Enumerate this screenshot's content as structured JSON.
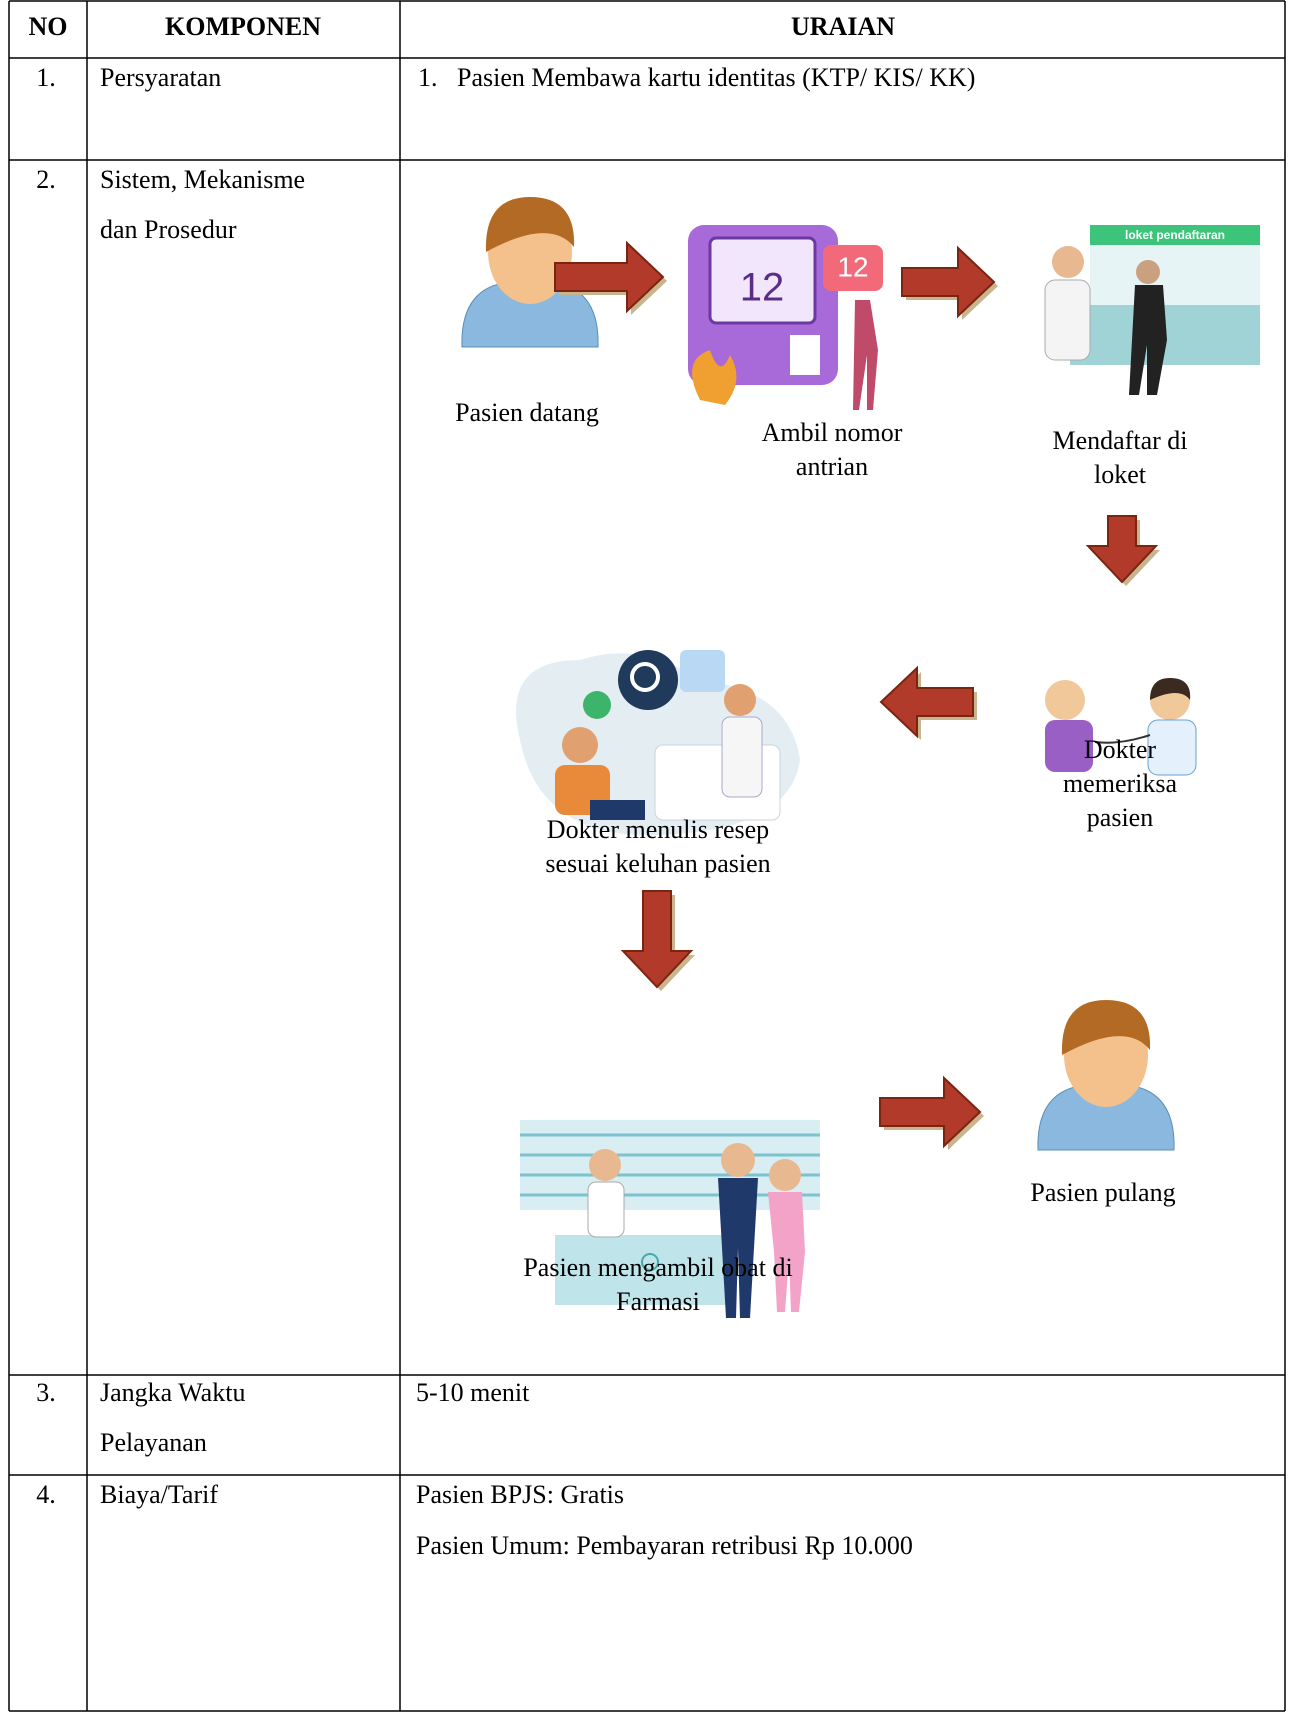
{
  "table": {
    "header": [
      "NO",
      "KOMPONEN",
      "URAIAN"
    ],
    "rows": [
      {
        "no": "1.",
        "komponen": [
          "Persyaratan"
        ],
        "uraian_list": [
          {
            "marker": "1.",
            "text": "Pasien Membawa kartu identitas (KTP/ KIS/ KK)"
          }
        ]
      },
      {
        "no": "2.",
        "komponen": [
          "Sistem, Mekanisme",
          "dan Prosedur"
        ],
        "flow": [
          {
            "label": [
              "Pasien datang"
            ]
          },
          {
            "label": [
              "Ambil nomor",
              "antrian"
            ],
            "image_text": "12"
          },
          {
            "label": [
              "Mendaftar di",
              "loket"
            ],
            "image_text": "loket pendaftaran"
          },
          {
            "label": [
              "Dokter",
              "memeriksa",
              "pasien"
            ]
          },
          {
            "label": [
              "Dokter menulis resep",
              "sesuai keluhan pasien"
            ]
          },
          {
            "label": [
              "Pasien mengambil obat di",
              "Farmasi"
            ]
          },
          {
            "label": [
              "Pasien pulang"
            ]
          }
        ]
      },
      {
        "no": "3.",
        "komponen": [
          "Jangka Waktu",
          "Pelayanan"
        ],
        "uraian": [
          "5-10 menit"
        ]
      },
      {
        "no": "4.",
        "komponen": [
          "Biaya/Tarif"
        ],
        "uraian": [
          "Pasien BPJS: Gratis",
          "Pasien Umum: Pembayaran retribusi Rp 10.000"
        ]
      }
    ]
  }
}
